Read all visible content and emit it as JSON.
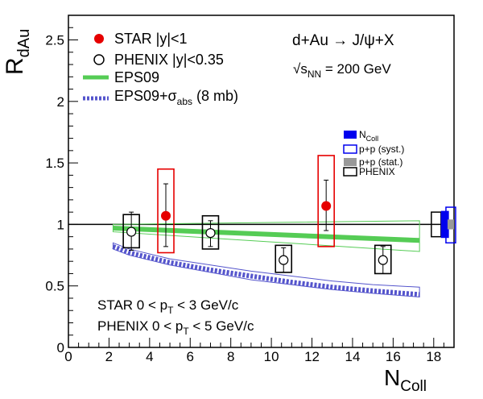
{
  "chart_data": {
    "type": "scatter",
    "ylabel_main": "R",
    "ylabel_sub": "dAu",
    "xlabel_main": "N",
    "xlabel_sub": "Coll",
    "xlim": [
      0,
      19
    ],
    "ylim": [
      0,
      2.7
    ],
    "x_ticks": [
      "0",
      "2",
      "4",
      "6",
      "8",
      "10",
      "12",
      "14",
      "16",
      "18"
    ],
    "y_ticks": [
      "0",
      "0.5",
      "1",
      "1.5",
      "2",
      "2.5"
    ],
    "reference_line": 1,
    "star": {
      "name": "STAR |y|<1",
      "color": "#e60000",
      "points": [
        {
          "x": 4.8,
          "y": 1.07,
          "stat_lo": 0.82,
          "stat_hi": 1.33,
          "sys_lo": 0.77,
          "sys_hi": 1.45
        },
        {
          "x": 12.7,
          "y": 1.15,
          "stat_lo": 0.95,
          "stat_hi": 1.36,
          "sys_lo": 0.82,
          "sys_hi": 1.56
        }
      ]
    },
    "phenix": {
      "name": "PHENIX |y|<0.35",
      "color": "#000000",
      "points": [
        {
          "x": 3.1,
          "y": 0.94,
          "stat_lo": 0.79,
          "stat_hi": 1.1,
          "sys_lo": 0.81,
          "sys_hi": 1.08
        },
        {
          "x": 7.0,
          "y": 0.93,
          "stat_lo": 0.82,
          "stat_hi": 1.03,
          "sys_lo": 0.8,
          "sys_hi": 1.07
        },
        {
          "x": 10.6,
          "y": 0.71,
          "stat_lo": 0.61,
          "stat_hi": 0.81,
          "sys_lo": 0.61,
          "sys_hi": 0.83
        },
        {
          "x": 15.5,
          "y": 0.71,
          "stat_lo": 0.6,
          "stat_hi": 0.82,
          "sys_lo": 0.6,
          "sys_hi": 0.83
        }
      ]
    },
    "eps09": {
      "name": "EPS09",
      "color": "#55cc55",
      "x": [
        2.2,
        17.3
      ],
      "central": [
        0.97,
        0.87
      ],
      "band_lo": [
        0.94,
        0.78
      ],
      "band_hi": [
        1.0,
        1.03
      ]
    },
    "eps09_abs": {
      "name_main": "EPS09+σ",
      "name_sub": "abs",
      "name_tail": " (8 mb)",
      "color": "#5555cc",
      "x": [
        2.2,
        3.0,
        5.0,
        7.0,
        9.0,
        11.0,
        13.0,
        15.0,
        17.3
      ],
      "central": [
        0.82,
        0.77,
        0.69,
        0.63,
        0.58,
        0.53,
        0.49,
        0.46,
        0.43
      ],
      "band_lo": [
        0.8,
        0.75,
        0.67,
        0.61,
        0.55,
        0.51,
        0.47,
        0.44,
        0.41
      ],
      "band_hi": [
        0.85,
        0.8,
        0.72,
        0.67,
        0.62,
        0.58,
        0.54,
        0.51,
        0.49
      ]
    },
    "global_uncertainties": {
      "ncoll": {
        "label_main": "N",
        "label_sub": "Coll",
        "color": "#0000ee",
        "x": 18.55,
        "lo": 0.89,
        "hi": 1.11
      },
      "pp_syst": {
        "label": "p+p (syst.)",
        "color": "#0000ee",
        "x": 18.8,
        "lo": 0.85,
        "hi": 1.14
      },
      "pp_stat": {
        "label": "p+p (stat.)",
        "color": "#999999",
        "x": 18.8,
        "lo": 0.96,
        "hi": 1.04
      },
      "phenix": {
        "label": "PHENIX",
        "color": "#000000",
        "x": 18.2,
        "lo": 0.9,
        "hi": 1.1
      }
    },
    "annotations": {
      "reaction": "d+Au → J/ψ+X",
      "energy_prefix": "√s",
      "energy_sub": "NN",
      "energy_tail": " = 200 GeV",
      "star_range_prefix": "STAR 0 < p",
      "star_range_sub": "T",
      "star_range_tail": " < 3 GeV/c",
      "phenix_range_prefix": "PHENIX 0 < p",
      "phenix_range_sub": "T",
      "phenix_range_tail": " < 5 GeV/c"
    }
  }
}
